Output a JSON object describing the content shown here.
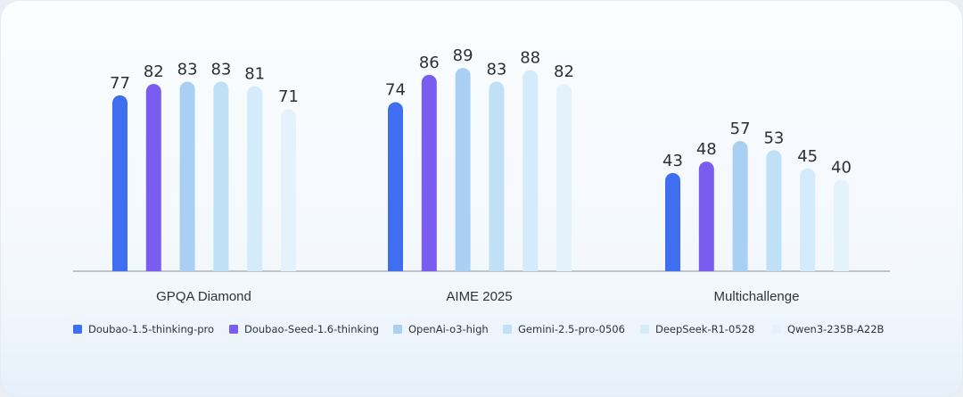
{
  "chart_data": {
    "type": "bar",
    "title": "",
    "xlabel": "",
    "ylabel": "",
    "ylim": [
      0,
      100
    ],
    "grid": false,
    "legend_position": "bottom",
    "categories": [
      "GPQA Diamond",
      "AIME 2025",
      "Multichallenge"
    ],
    "series": [
      {
        "name": "Doubao-1.5-thinking-pro",
        "color": "#3f6ff0",
        "values": [
          77,
          74,
          43
        ]
      },
      {
        "name": "Doubao-Seed-1.6-thinking",
        "color": "#7b5cf0",
        "values": [
          82,
          86,
          48
        ]
      },
      {
        "name": "OpenAi-o3-high",
        "color": "#a9d0f2",
        "values": [
          83,
          89,
          57
        ]
      },
      {
        "name": "Gemini-2.5-pro-0506",
        "color": "#bfe0f7",
        "values": [
          83,
          83,
          53
        ]
      },
      {
        "name": "DeepSeek-R1-0528",
        "color": "#d3ebfa",
        "values": [
          81,
          88,
          45
        ]
      },
      {
        "name": "Qwen3-235B-A22B",
        "color": "#e4f3fb",
        "values": [
          71,
          82,
          40
        ]
      }
    ]
  }
}
